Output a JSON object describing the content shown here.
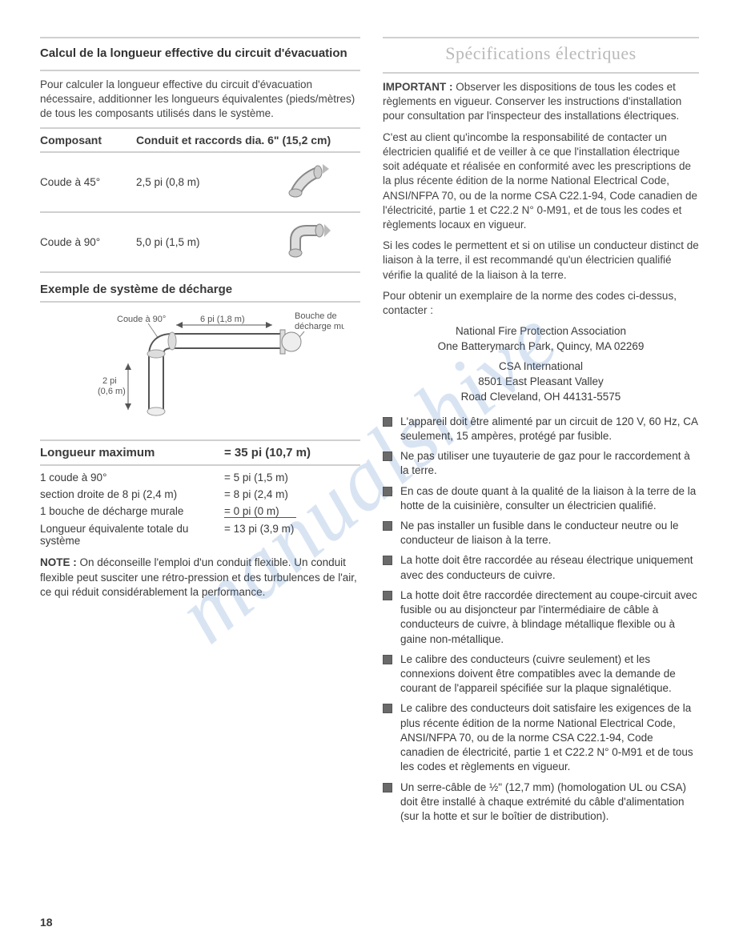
{
  "watermark": "manualshive",
  "page_number": "18",
  "left": {
    "title": "Calcul de la longueur effective du circuit d'évacuation",
    "intro": "Pour calculer la longueur effective du circuit d'évacuation nécessaire, additionner les longueurs équivalentes (pieds/mètres) de tous les composants utilisés dans le système.",
    "table": {
      "head_c1": "Composant",
      "head_c2": "Conduit et raccords dia. 6\" (15,2 cm)",
      "rows": [
        {
          "name": "Coude à 45°",
          "value": "2,5 pi (0,8 m)",
          "angle": 45
        },
        {
          "name": "Coude à 90°",
          "value": "5,0 pi (1,5 m)",
          "angle": 90
        }
      ]
    },
    "diagram": {
      "title": "Exemple de système de décharge",
      "label_elbow": "Coude à 90°",
      "label_h": "6 pi (1,8 m)",
      "label_v": "2 pi\n(0,6 m)",
      "label_cap": "Bouche de\ndécharge murale"
    },
    "length_table": {
      "head_label": "Longueur maximum",
      "head_value": "= 35 pi (10,7 m)",
      "rows": [
        {
          "label": "1 coude à 90°",
          "value": "= 5 pi (1,5 m)"
        },
        {
          "label": "section droite de 8 pi (2,4 m)",
          "value": "= 8 pi (2,4 m)"
        },
        {
          "label": "1 bouche de décharge murale",
          "value": "= 0 pi (0 m)",
          "underline": true
        },
        {
          "label": "Longueur équivalente totale du système",
          "value": "= 13 pi (3,9 m)"
        }
      ]
    },
    "note_label": "NOTE :",
    "note_text": " On déconseille l'emploi d'un conduit flexible. Un conduit flexible peut susciter une rétro-pression et des turbulences de l'air, ce qui réduit considérablement la performance."
  },
  "right": {
    "title": "Spécifications électriques",
    "important_label": "IMPORTANT :",
    "important_text": " Observer les dispositions de tous les codes et règlements en vigueur. Conserver les instructions d'installation pour consultation par l'inspecteur des installations électriques.",
    "para2": "C'est au client qu'incombe la responsabilité de contacter un électricien qualifié et de veiller à ce que l'installation électrique soit adéquate et réalisée en conformité avec les prescriptions de la plus récente édition de la norme National Electrical Code, ANSI/NFPA 70, ou de la norme CSA C22.1-94, Code canadien de l'électricité, partie 1 et C22.2 N° 0-M91, et de tous les codes et règlements locaux en vigueur.",
    "para3": "Si les codes le permettent et si on utilise un conducteur distinct de liaison à la terre, il est recommandé qu'un électricien qualifié vérifie la qualité de la liaison à la terre.",
    "para4": "Pour obtenir un exemplaire de la norme des codes ci-dessus, contacter :",
    "contact1_line1": "National Fire Protection Association",
    "contact1_line2": "One Batterymarch Park, Quincy, MA 02269",
    "contact2_line1": "CSA International",
    "contact2_line2": "8501 East Pleasant Valley",
    "contact2_line3": "Road Cleveland, OH 44131-5575",
    "bullets": [
      "L'appareil doit être alimenté par un circuit de 120 V, 60 Hz, CA seulement, 15 ampères, protégé par fusible.",
      "Ne pas utiliser une tuyauterie de gaz pour le raccordement à la terre.",
      "En cas de doute quant à la qualité de la liaison à la terre de la hotte de la cuisinière, consulter un électricien qualifié.",
      "Ne pas installer un fusible dans le conducteur neutre ou le conducteur de liaison à la terre.",
      "La hotte doit être raccordée au réseau électrique uniquement avec des conducteurs de cuivre.",
      "La hotte doit être raccordée directement au coupe-circuit avec fusible ou au disjoncteur par l'intermédiaire de câble à conducteurs de cuivre, à blindage métallique flexible ou à gaine non-métallique.",
      "Le calibre des conducteurs (cuivre seulement) et les connexions doivent être compatibles avec la demande de courant de l'appareil spécifiée sur la plaque signalétique.",
      "Le calibre des conducteurs doit satisfaire les exigences de la plus récente édition de la norme National Electrical Code, ANSI/NFPA 70, ou de la norme CSA C22.1-94, Code canadien de électricité, partie 1 et C22.2 N° 0-M91 et de tous les codes et règlements en vigueur.",
      "Un serre-câble de ½\" (12,7 mm) (homologation UL ou CSA) doit être installé à chaque extrémité du câble d'alimentation (sur la hotte et sur le boîtier de distribution)."
    ]
  }
}
